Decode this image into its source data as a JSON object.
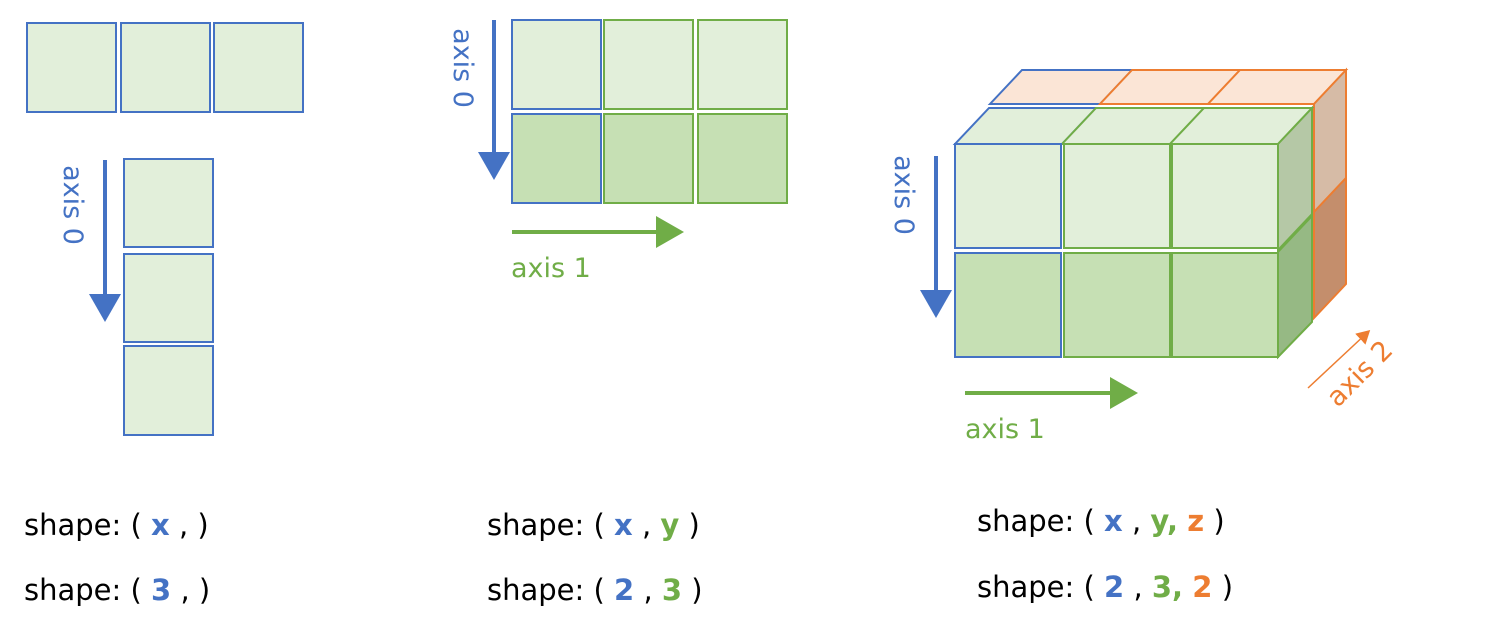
{
  "colors": {
    "blue": "#4472C4",
    "green": "#70AD47",
    "orange": "#ED7D31",
    "light_green": "#E2EFDA",
    "mid_green": "#C6E0B4",
    "peach": "#FBE5D6",
    "text": "#000000"
  },
  "panel_1d": {
    "axis0_label": "axis 0",
    "shape_prefix": "shape: (",
    "shape_symbolic": {
      "x": "x",
      "after": ", )"
    },
    "shape_numeric": {
      "x": "3",
      "after": ", )"
    }
  },
  "panel_2d": {
    "axis0_label": "axis 0",
    "axis1_label": "axis 1",
    "shape_prefix": "shape: (",
    "shape_symbolic": {
      "x": "x",
      "sep1": ",",
      "y": "y",
      "after": ")"
    },
    "shape_numeric": {
      "x": "2",
      "sep1": ",",
      "y": "3",
      "after": ")"
    }
  },
  "panel_3d": {
    "axis0_label": "axis 0",
    "axis1_label": "axis 1",
    "axis2_label": "axis 2",
    "shape_prefix": "shape: (",
    "shape_symbolic": {
      "x": "x",
      "sep1": ",",
      "y": "y,",
      "z": "z",
      "after": ")"
    },
    "shape_numeric": {
      "x": "2",
      "sep1": ",",
      "y": "3,",
      "z": "2",
      "after": ")"
    }
  }
}
